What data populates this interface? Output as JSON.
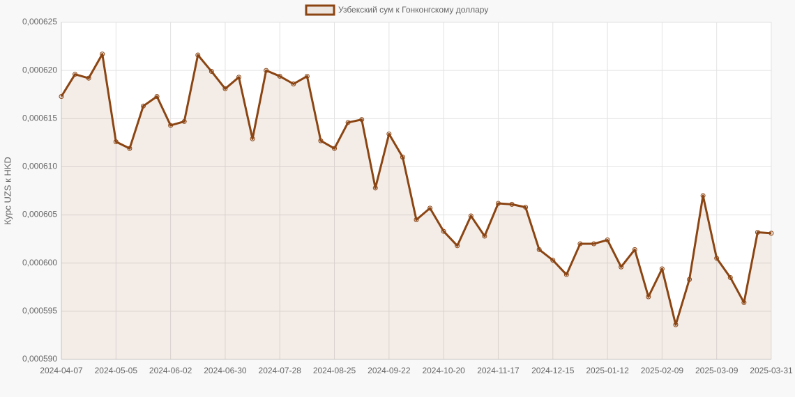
{
  "chart_data": {
    "type": "line",
    "legend": "top",
    "y_label": "Курс UZS к HKD",
    "categories": [
      "2024-04-07",
      null,
      null,
      null,
      "2024-05-05",
      null,
      null,
      null,
      "2024-06-02",
      null,
      null,
      null,
      "2024-06-30",
      null,
      null,
      null,
      "2024-07-28",
      null,
      null,
      null,
      "2024-08-25",
      null,
      null,
      null,
      "2024-09-22",
      null,
      null,
      null,
      "2024-10-20",
      null,
      null,
      null,
      "2024-11-17",
      null,
      null,
      null,
      "2024-12-15",
      null,
      null,
      null,
      "2025-01-12",
      null,
      null,
      null,
      "2025-02-09",
      null,
      null,
      null,
      "2025-03-09",
      null,
      null,
      null,
      "2025-03-31"
    ],
    "series": [
      {
        "name": "Узбекский сум к Гонконгскому доллару",
        "color": "#8b4513",
        "fill": "rgba(139,69,19,0.1)",
        "values": [
          0.0006173,
          0.0006196,
          0.0006192,
          0.0006217,
          0.0006126,
          0.0006119,
          0.0006163,
          0.0006173,
          0.0006143,
          0.0006147,
          0.0006216,
          0.0006199,
          0.0006181,
          0.0006193,
          0.0006129,
          0.00062,
          0.0006194,
          0.0006186,
          0.0006194,
          0.0006127,
          0.0006119,
          0.0006146,
          0.0006149,
          0.0006078,
          0.0006134,
          0.000611,
          0.0006045,
          0.0006057,
          0.0006033,
          0.0006018,
          0.0006049,
          0.0006028,
          0.0006062,
          0.0006061,
          0.0006058,
          0.0006014,
          0.0006003,
          0.0005988,
          0.000602,
          0.000602,
          0.0006024,
          0.0005996,
          0.0006014,
          0.0005965,
          0.0005994,
          0.0005936,
          0.0005983,
          0.000607,
          0.0006005,
          0.0005985,
          0.0005959,
          0.0006032,
          0.0006031
        ]
      }
    ],
    "ylim": [
      0.00059,
      0.000625
    ],
    "yticks": [
      {
        "value": 0.00059,
        "label": "0,000590"
      },
      {
        "value": 0.000595,
        "label": "0,000595"
      },
      {
        "value": 0.0006,
        "label": "0,000600"
      },
      {
        "value": 0.000605,
        "label": "0,000605"
      },
      {
        "value": 0.00061,
        "label": "0,000610"
      },
      {
        "value": 0.000615,
        "label": "0,000615"
      },
      {
        "value": 0.00062,
        "label": "0,000620"
      },
      {
        "value": 0.000625,
        "label": "0,000625"
      }
    ],
    "grid": true
  }
}
